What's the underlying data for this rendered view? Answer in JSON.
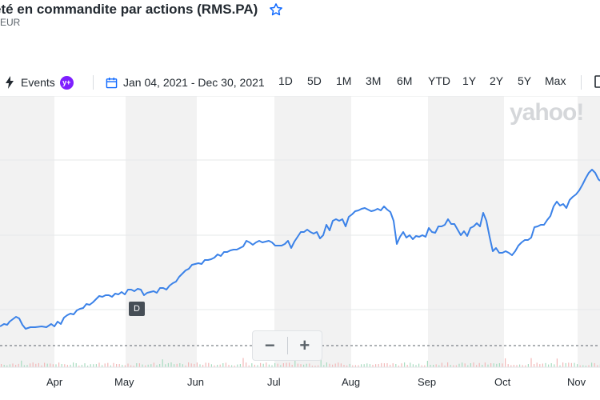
{
  "header": {
    "title": "eté en commandite par actions (RMS.PA)",
    "currency": "EUR",
    "watchlist_icon": "star-outline-icon"
  },
  "toolbar": {
    "events_label": "Events",
    "events_badge": "y+",
    "date_range_label": "Jan 04, 2021 - Dec 30, 2021",
    "ranges": [
      "1D",
      "5D",
      "1M",
      "3M",
      "6M",
      "YTD",
      "1Y",
      "2Y",
      "5Y",
      "Max"
    ]
  },
  "chart": {
    "watermark": "yahoo!",
    "event_marker": "D",
    "zoom_out_label": "−",
    "zoom_in_label": "+",
    "line_color": "#3b82e8",
    "x_tick_labels": [
      "Apr",
      "May",
      "Jun",
      "Jul",
      "Aug",
      "Sep",
      "Oct",
      "Nov"
    ]
  }
}
